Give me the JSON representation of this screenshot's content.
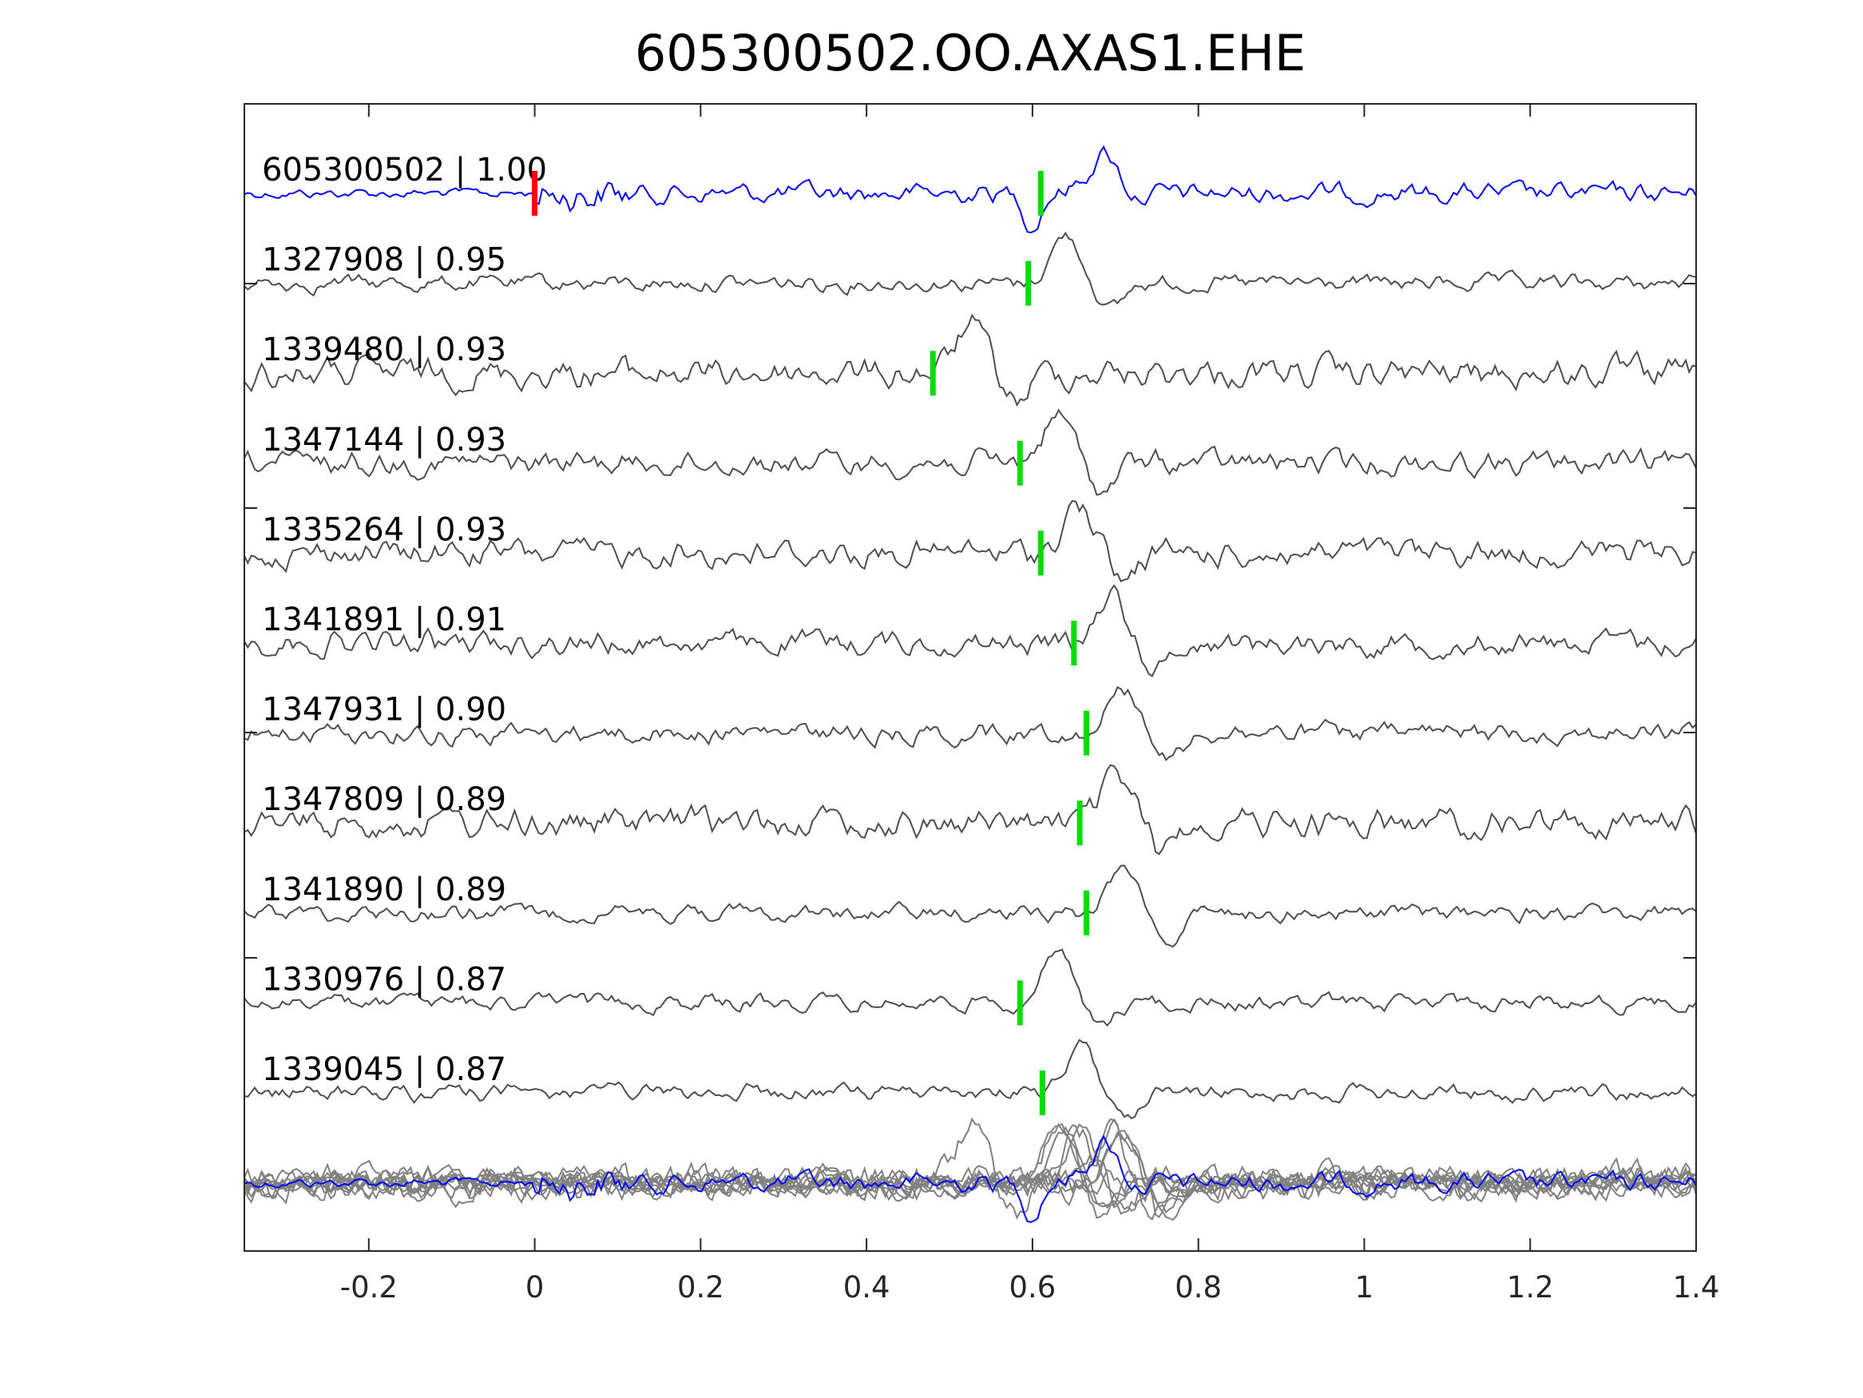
{
  "chart_data": {
    "type": "line",
    "title": "605300502.OO.AXAS1.EHE",
    "xlabel": "",
    "ylabel": "",
    "xlim": [
      -0.35,
      1.4
    ],
    "xticks": [
      "-0.2",
      "0",
      "0.2",
      "0.4",
      "0.6",
      "0.8",
      "1",
      "1.2",
      "1.4"
    ],
    "xtick_values": [
      -0.2,
      0,
      0.2,
      0.4,
      0.6,
      0.8,
      1,
      1.2,
      1.4
    ],
    "grid": false,
    "colors": {
      "template": "#0000ff",
      "match": "#4d4d4d",
      "overlay": "#808080",
      "template_pick": "#ff0000",
      "match_pick": "#00dd00",
      "axis": "#262626"
    },
    "traces": [
      {
        "label": "605300502 | 1.00",
        "id": "605300502",
        "cc": 1.0,
        "pick": 0.0,
        "pick2": 0.61,
        "template": true,
        "amp": 1.0
      },
      {
        "label": "1327908 | 0.95",
        "id": "1327908",
        "cc": 0.95,
        "pick": 0.595,
        "amp": 0.6
      },
      {
        "label": "1339480 | 0.93",
        "id": "1339480",
        "cc": 0.93,
        "pick": 0.48,
        "amp": 1.1
      },
      {
        "label": "1347144 | 0.93",
        "id": "1347144",
        "cc": 0.93,
        "pick": 0.585,
        "amp": 0.9
      },
      {
        "label": "1335264 | 0.93",
        "id": "1335264",
        "cc": 0.93,
        "pick": 0.61,
        "amp": 1.0
      },
      {
        "label": "1341891 | 0.91",
        "id": "1341891",
        "cc": 0.91,
        "pick": 0.65,
        "amp": 0.9
      },
      {
        "label": "1347931 | 0.90",
        "id": "1347931",
        "cc": 0.9,
        "pick": 0.665,
        "amp": 0.75
      },
      {
        "label": "1347809 | 0.89",
        "id": "1347809",
        "cc": 0.89,
        "pick": 0.657,
        "amp": 1.1
      },
      {
        "label": "1341890 | 0.89",
        "id": "1341890",
        "cc": 0.89,
        "pick": 0.665,
        "amp": 0.6
      },
      {
        "label": "1330976 | 0.87",
        "id": "1330976",
        "cc": 0.87,
        "pick": 0.585,
        "amp": 0.6
      },
      {
        "label": "1339045 | 0.87",
        "id": "1339045",
        "cc": 0.87,
        "pick": 0.612,
        "amp": 0.6
      }
    ]
  }
}
